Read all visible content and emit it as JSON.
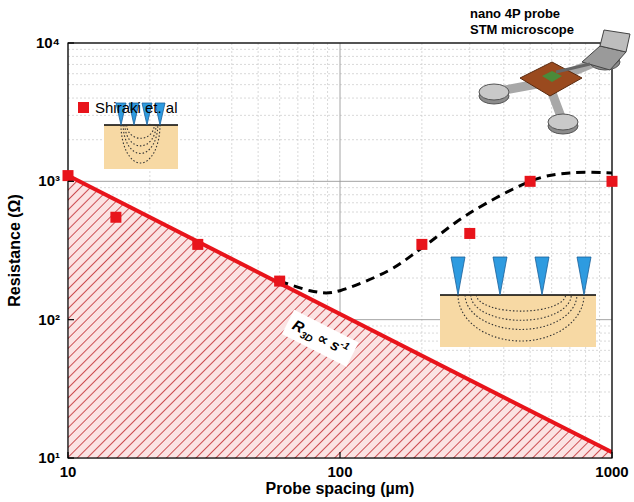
{
  "chart_data": {
    "type": "scatter",
    "xlabel": "Probe spacing (µm)",
    "ylabel": "Resistance (Ω)",
    "log": true,
    "grid": true,
    "legend": "upper left",
    "xlim": [
      10,
      1000
    ],
    "ylim": [
      10,
      10000
    ],
    "xticks": [
      10,
      100,
      1000
    ],
    "yticks": [
      {
        "value": 10,
        "label": "10¹"
      },
      {
        "value": 100,
        "label": "10²"
      },
      {
        "value": 1000,
        "label": "10³"
      },
      {
        "value": 10000,
        "label": "10⁴"
      }
    ],
    "series": [
      {
        "name": "Shiraki et. al",
        "type": "scatter",
        "color": "#e8141b",
        "marker": "square",
        "x": [
          10,
          15,
          30,
          60,
          200,
          300,
          500,
          1000
        ],
        "values": [
          1100,
          550,
          350,
          190,
          350,
          420,
          1000,
          1000
        ]
      },
      {
        "type": "line",
        "color": "#e8141b",
        "line_style": "solid",
        "x": [
          10,
          1000
        ],
        "values": [
          1100,
          11
        ]
      },
      {
        "type": "line",
        "color": "#000000",
        "line_style": "dashed",
        "x": [
          60,
          80,
          100,
          150,
          200,
          300,
          500,
          700,
          1000
        ],
        "values": [
          190,
          160,
          162,
          225,
          330,
          590,
          1000,
          1150,
          1150
        ]
      }
    ],
    "annotation": [
      "R",
      "3D",
      " ∝ s",
      "-1"
    ],
    "inset_caption": [
      "nano 4P probe",
      "STM microscope"
    ]
  }
}
